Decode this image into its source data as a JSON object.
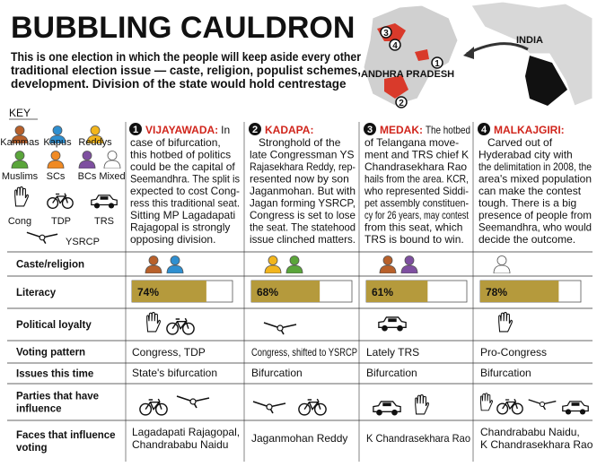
{
  "header": {
    "title": "BUBBLING CAULDRON",
    "intro": [
      "This is one election in which the people will keep aside every other",
      "traditional election issue — caste, religion, populist schemes,",
      "development. Division of the state would hold centrestage"
    ]
  },
  "map": {
    "india": "INDIA",
    "state": "ANDHRA PRADESH",
    "markers": [
      "1",
      "2",
      "3",
      "4"
    ]
  },
  "key": {
    "title": "KEY",
    "castes": [
      "Kammas",
      "Kapus",
      "Reddys",
      "Muslims",
      "SCs",
      "BCs",
      "Mixed"
    ],
    "parties": [
      "Cong",
      "TDP",
      "TRS",
      "YSRCP"
    ]
  },
  "columns": [
    {
      "number": "1",
      "name": "VIJAYAWADA:",
      "lead": "In",
      "lines": [
        "case of bifurcation,",
        "this hotbed of politics",
        "could be the capital of",
        "Seemandhra. The split is",
        "expected to cost Cong-",
        "ress this traditional seat.",
        "Sitting MP Lagadapati",
        "Rajagopal is strongly",
        "opposing division."
      ]
    },
    {
      "number": "2",
      "name": "KADAPA:",
      "lines": [
        "Stronghold of the",
        "late Congressman YS",
        "Rajasekhara Reddy, rep-",
        "resented now by son",
        "Jaganmohan. But with",
        "Jagan forming YSRCP,",
        "Congress is set to lose",
        "the seat. The statehood",
        "issue clinched matters."
      ]
    },
    {
      "number": "3",
      "name": "MEDAK:",
      "lead": "The hotbed",
      "lines": [
        "of Telangana move-",
        "ment and TRS chief K",
        "Chandrasekhara Rao",
        "hails from the area. KCR,",
        "who represented Siddi-",
        "pet assembly constituen-",
        "cy for 26 years, may contest",
        "from this seat, which",
        "TRS is bound to win."
      ]
    },
    {
      "number": "4",
      "name": "MALKAJGIRI:",
      "lines": [
        "Carved out of",
        "Hyderabad city with",
        "the delimitation in 2008, the",
        "area's mixed population",
        "can make the contest",
        "tough. There is a big",
        "presence of people from",
        "Seemandhra, who would",
        "decide the outcome."
      ]
    }
  ],
  "rows": {
    "labels": [
      [
        "Caste/religion"
      ],
      [
        "Literacy"
      ],
      [
        "Political loyalty"
      ],
      [
        "Voting pattern"
      ],
      [
        "Issues this time"
      ],
      [
        "Parties that have",
        "influence"
      ],
      [
        "Faces that influence",
        "voting"
      ]
    ],
    "literacy": {
      "values": [
        74,
        68,
        61,
        78
      ],
      "value_labels": [
        "74%",
        "68%",
        "61%",
        "78%"
      ]
    },
    "voting": [
      "Congress, TDP",
      "Congress, shifted to YSRCP",
      "Lately TRS",
      "Pro-Congress"
    ],
    "issues": [
      "State's bifurcation",
      "Bifurcation",
      "Bifurcation",
      "Bifurcation"
    ],
    "faces": [
      [
        "Lagadapati Rajagopal,",
        "Chandrababu Naidu"
      ],
      [
        "Jaganmohan Reddy"
      ],
      [
        "K Chandrasekhara Rao"
      ],
      [
        "Chandrababu Naidu,",
        "K Chandrasekhara Rao"
      ]
    ]
  }
}
